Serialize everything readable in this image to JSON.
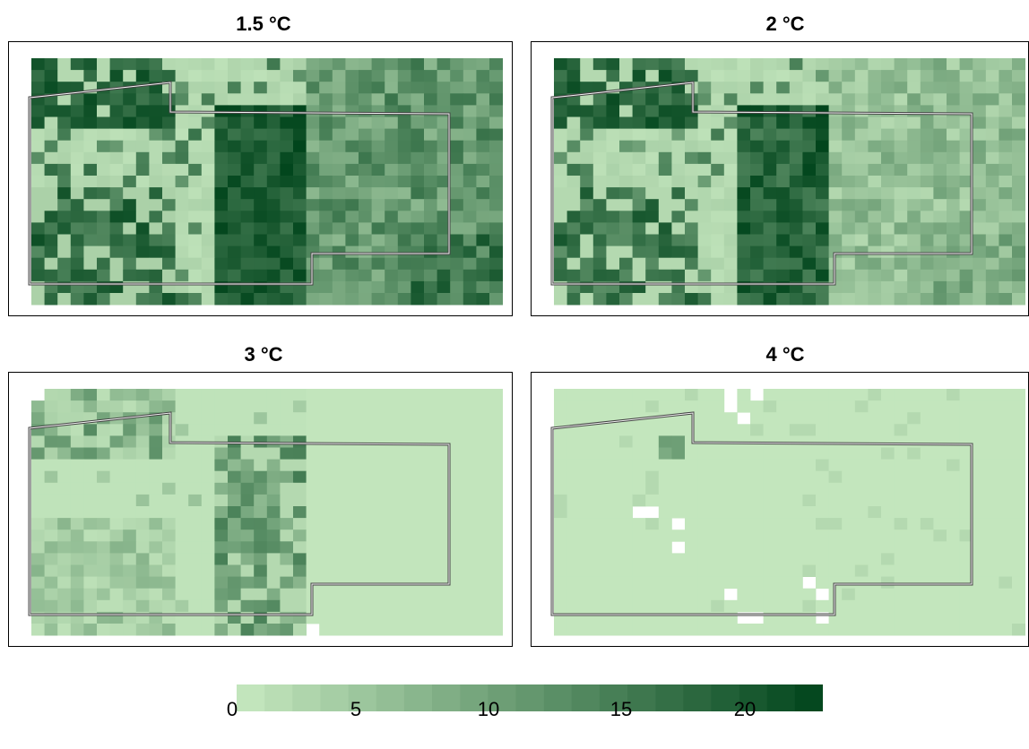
{
  "chart_data": {
    "type": "heatmap",
    "panels": [
      {
        "title": "1.5 °C",
        "pattern": "p15"
      },
      {
        "title": "2 °C",
        "pattern": "p2"
      },
      {
        "title": "3 °C",
        "pattern": "p3"
      },
      {
        "title": "4 °C",
        "pattern": "p4"
      }
    ],
    "colorbar": {
      "min": 0,
      "max": 21,
      "tick_values": [
        0,
        5,
        10,
        15,
        20
      ],
      "tick_labels": [
        "0",
        "5",
        "10",
        "15",
        "20"
      ]
    },
    "colors": {
      "low": "#c7e9c0",
      "high": "#00441b",
      "missing": "#ffffff",
      "outline": "#555555"
    }
  }
}
